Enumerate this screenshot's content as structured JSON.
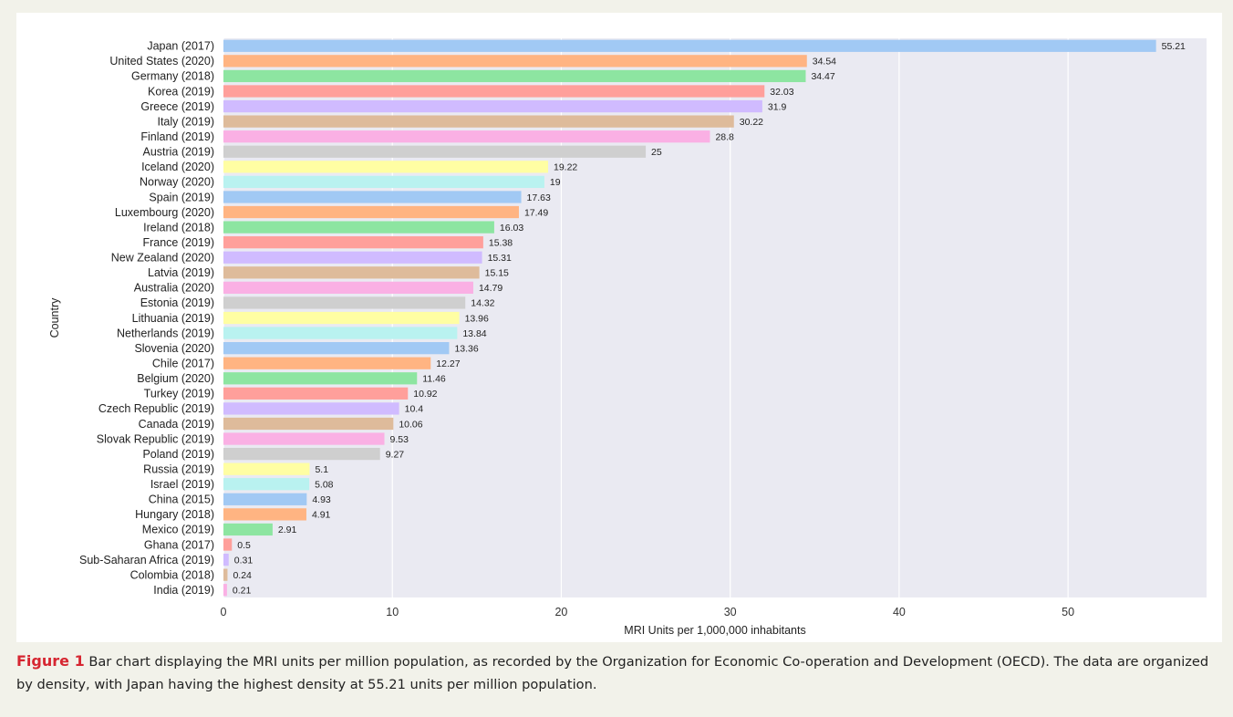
{
  "chart_data": {
    "type": "bar",
    "orientation": "horizontal",
    "xlabel": "MRI Units per 1,000,000 inhabitants",
    "ylabel": "Country",
    "xlim": [
      0,
      58.2
    ],
    "xticks": [
      0,
      10,
      20,
      30,
      40,
      50
    ],
    "grid": true,
    "categories": [
      "Japan (2017)",
      "United States (2020)",
      "Germany (2018)",
      "Korea (2019)",
      "Greece (2019)",
      "Italy (2019)",
      "Finland (2019)",
      "Austria (2019)",
      "Iceland (2020)",
      "Norway (2020)",
      "Spain (2019)",
      "Luxembourg (2020)",
      "Ireland (2018)",
      "France (2019)",
      "New Zealand (2020)",
      "Latvia (2019)",
      "Australia (2020)",
      "Estonia (2019)",
      "Lithuania (2019)",
      "Netherlands (2019)",
      "Slovenia (2020)",
      "Chile (2017)",
      "Belgium (2020)",
      "Turkey (2019)",
      "Czech Republic (2019)",
      "Canada (2019)",
      "Slovak Republic (2019)",
      "Poland (2019)",
      "Russia (2019)",
      "Israel (2019)",
      "China (2015)",
      "Hungary (2018)",
      "Mexico (2019)",
      "Ghana (2017)",
      "Sub-Saharan Africa (2019)",
      "Colombia (2018)",
      "India (2019)"
    ],
    "values": [
      55.21,
      34.54,
      34.47,
      32.03,
      31.9,
      30.22,
      28.8,
      25,
      19.22,
      19,
      17.63,
      17.49,
      16.03,
      15.38,
      15.31,
      15.15,
      14.79,
      14.32,
      13.96,
      13.84,
      13.36,
      12.27,
      11.46,
      10.92,
      10.4,
      10.06,
      9.53,
      9.27,
      5.1,
      5.08,
      4.93,
      4.91,
      2.91,
      0.5,
      0.31,
      0.24,
      0.21
    ],
    "value_labels": [
      "55.21",
      "34.54",
      "34.47",
      "32.03",
      "31.9",
      "30.22",
      "28.8",
      "25",
      "19.22",
      "19",
      "17.63",
      "17.49",
      "16.03",
      "15.38",
      "15.31",
      "15.15",
      "14.79",
      "14.32",
      "13.96",
      "13.84",
      "13.36",
      "12.27",
      "11.46",
      "10.92",
      "10.4",
      "10.06",
      "9.53",
      "9.27",
      "5.1",
      "5.08",
      "4.93",
      "4.91",
      "2.91",
      "0.5",
      "0.31",
      "0.24",
      "0.21"
    ],
    "palette": [
      "#a1c9f4",
      "#ffb482",
      "#8de5a1",
      "#ff9f9b",
      "#d0bbff",
      "#debb9b",
      "#fab0e4",
      "#cfcfcf",
      "#fffea3",
      "#b9f2f0"
    ],
    "plot_background": "#eaeaf2",
    "grid_color": "#ffffff"
  },
  "caption": {
    "label": "Figure 1",
    "text": "Bar chart displaying the MRI units per million population, as recorded by the Organization for Economic Co-operation and Development (OECD). The data are organized by density, with Japan having the highest density at 55.21 units per million population."
  }
}
